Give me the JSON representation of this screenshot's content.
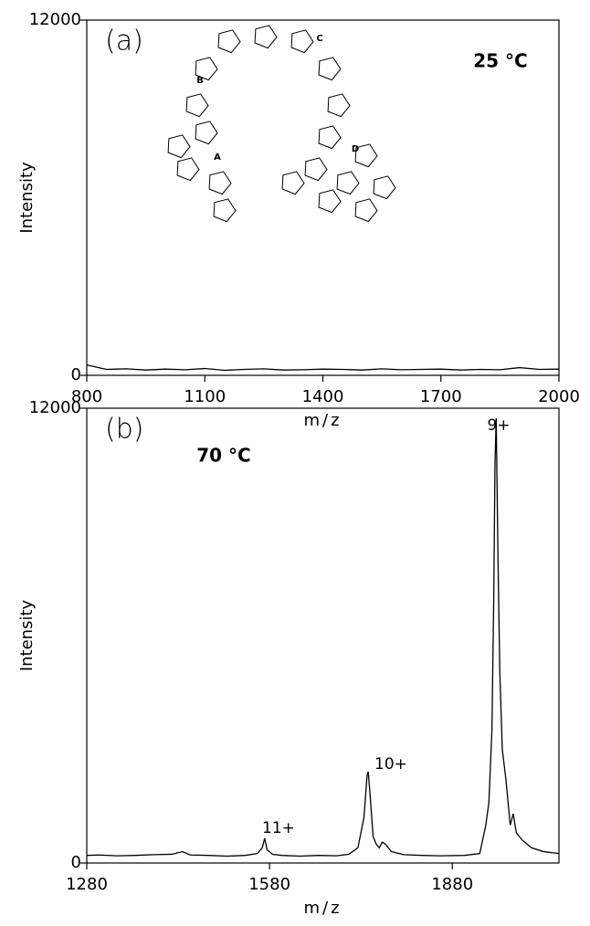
{
  "chart_data": [
    {
      "type": "line",
      "panel_label": "(a)",
      "annotations": [
        "25 °C"
      ],
      "inset_labels": [
        "A",
        "B",
        "C",
        "D"
      ],
      "x_label": "m/z",
      "y_label": "Intensity",
      "color": "#000000",
      "x": [
        800,
        850,
        900,
        950,
        1000,
        1050,
        1100,
        1150,
        1200,
        1250,
        1300,
        1350,
        1400,
        1450,
        1500,
        1550,
        1600,
        1650,
        1700,
        1750,
        1800,
        1850,
        1900,
        1950,
        2000
      ],
      "values": [
        350,
        200,
        220,
        180,
        210,
        190,
        230,
        170,
        200,
        220,
        180,
        190,
        210,
        200,
        180,
        220,
        190,
        200,
        210,
        180,
        200,
        190,
        260,
        200,
        210
      ],
      "xlim": [
        800,
        2000
      ],
      "ylim": [
        0,
        12000
      ],
      "xticks": [
        800,
        1100,
        1400,
        1700,
        2000
      ],
      "yticks": [
        0,
        12000
      ]
    },
    {
      "type": "line",
      "panel_label": "(b)",
      "annotations": [
        "70 °C",
        "11+",
        "10+",
        "9+"
      ],
      "x_label": "m/z",
      "y_label": "Intensity",
      "color": "#000000",
      "x": [
        1280,
        1300,
        1330,
        1360,
        1390,
        1420,
        1437,
        1450,
        1480,
        1510,
        1540,
        1560,
        1568,
        1572,
        1576,
        1585,
        1600,
        1630,
        1660,
        1690,
        1710,
        1725,
        1735,
        1740,
        1742,
        1745,
        1750,
        1755,
        1760,
        1765,
        1770,
        1780,
        1800,
        1830,
        1860,
        1900,
        1925,
        1935,
        1940,
        1945,
        1948,
        1950,
        1952,
        1955,
        1958,
        1962,
        1968,
        1975,
        1980,
        1985,
        1995,
        2010,
        2030,
        2055
      ],
      "values": [
        200,
        210,
        190,
        200,
        220,
        230,
        300,
        210,
        200,
        180,
        200,
        250,
        400,
        650,
        350,
        230,
        200,
        180,
        200,
        190,
        230,
        400,
        1200,
        2300,
        2410,
        1800,
        700,
        500,
        400,
        550,
        500,
        300,
        220,
        200,
        190,
        200,
        250,
        1000,
        1600,
        3500,
        7000,
        10500,
        11735,
        8000,
        5000,
        3000,
        2200,
        1000,
        1300,
        800,
        600,
        400,
        300,
        250
      ],
      "xlim": [
        1280,
        2055
      ],
      "ylim": [
        0,
        12000
      ],
      "xticks": [
        1280,
        1580,
        1880
      ],
      "yticks": [
        0,
        12000
      ]
    }
  ]
}
